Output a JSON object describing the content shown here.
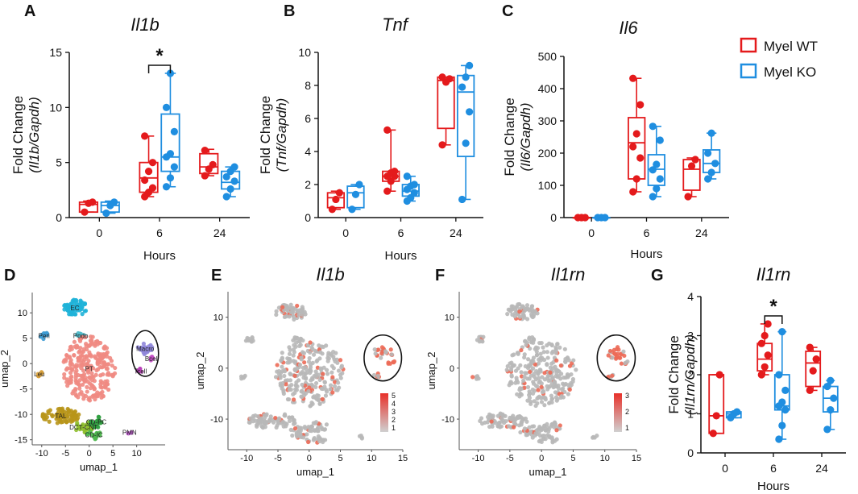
{
  "colors": {
    "wt": "#e41a1c",
    "ko": "#1f8ee0",
    "grey": "#b8b8b8"
  },
  "legend": {
    "wt": "Myel WT",
    "ko": "Myel KO"
  },
  "chart_data": [
    {
      "id": "A",
      "letter": "A",
      "type": "box",
      "title": "Il1b",
      "ylabel_top": "Fold Change",
      "ylabel_bottom": "(Il1b/Gapdh)",
      "xlabel": "Hours",
      "categories": [
        "0",
        "6",
        "24"
      ],
      "ylim": [
        0,
        15
      ],
      "yticks": [
        0,
        5,
        10,
        15
      ],
      "significance": {
        "group": 1,
        "label": "*"
      },
      "series": [
        {
          "name": "Myel WT",
          "groups": [
            {
              "min": 0.5,
              "q1": 0.5,
              "median": 1.2,
              "q3": 1.4,
              "max": 1.5,
              "points": [
                0.5,
                1.3,
                1.4
              ]
            },
            {
              "min": 1.9,
              "q1": 2.3,
              "median": 3.6,
              "q3": 5.0,
              "max": 7.4,
              "points": [
                1.9,
                2.3,
                2.7,
                3.4,
                4.2,
                5.0,
                7.4
              ]
            },
            {
              "min": 3.8,
              "q1": 4.0,
              "median": 4.6,
              "q3": 5.8,
              "max": 6.2,
              "points": [
                3.8,
                4.4,
                4.8,
                6.1
              ]
            }
          ]
        },
        {
          "name": "Myel KO",
          "groups": [
            {
              "min": 0.4,
              "q1": 0.5,
              "median": 1.1,
              "q3": 1.4,
              "max": 1.5,
              "points": [
                0.4,
                1.1,
                1.4
              ]
            },
            {
              "min": 2.8,
              "q1": 4.2,
              "median": 5.5,
              "q3": 9.4,
              "max": 13.1,
              "points": [
                2.8,
                3.6,
                4.6,
                5.5,
                5.8,
                7.8,
                10.0,
                13.1
              ]
            },
            {
              "min": 1.9,
              "q1": 2.6,
              "median": 3.2,
              "q3": 4.2,
              "max": 4.6,
              "points": [
                1.9,
                2.6,
                3.3,
                3.7,
                4.2,
                4.6
              ]
            }
          ]
        }
      ]
    },
    {
      "id": "B",
      "letter": "B",
      "type": "box",
      "title": "Tnf",
      "ylabel_top": "Fold Change",
      "ylabel_bottom": "(Tnf/Gapdh)",
      "xlabel": "Hours",
      "categories": [
        "0",
        "6",
        "24"
      ],
      "ylim": [
        0,
        10
      ],
      "yticks": [
        0,
        2,
        4,
        6,
        8,
        10
      ],
      "series": [
        {
          "name": "Myel WT",
          "groups": [
            {
              "min": 0.5,
              "q1": 0.6,
              "median": 1.2,
              "q3": 1.5,
              "max": 1.6,
              "points": [
                0.5,
                1.1,
                1.5
              ]
            },
            {
              "min": 1.6,
              "q1": 2.2,
              "median": 2.5,
              "q3": 2.8,
              "max": 5.3,
              "points": [
                1.6,
                2.2,
                2.5,
                2.5,
                2.7,
                2.8,
                5.3
              ]
            },
            {
              "min": 4.4,
              "q1": 5.4,
              "median": 8.3,
              "q3": 8.5,
              "max": 8.5,
              "points": [
                4.4,
                8.2,
                8.4,
                8.5
              ]
            }
          ]
        },
        {
          "name": "Myel KO",
          "groups": [
            {
              "min": 0.5,
              "q1": 0.6,
              "median": 1.5,
              "q3": 1.9,
              "max": 2.0,
              "points": [
                0.5,
                1.4,
                2.0
              ]
            },
            {
              "min": 1.0,
              "q1": 1.3,
              "median": 1.6,
              "q3": 2.0,
              "max": 2.5,
              "points": [
                1.0,
                1.2,
                1.5,
                1.7,
                1.9,
                2.0,
                2.5
              ]
            },
            {
              "min": 1.1,
              "q1": 3.7,
              "median": 7.6,
              "q3": 8.6,
              "max": 9.2,
              "points": [
                1.1,
                4.5,
                6.4,
                7.9,
                8.5,
                9.2
              ]
            }
          ]
        }
      ]
    },
    {
      "id": "C",
      "letter": "C",
      "type": "box",
      "title": "Il6",
      "ylabel_top": "Fold Change",
      "ylabel_bottom": "(Il6/Gapdh)",
      "xlabel": "Hours",
      "categories": [
        "0",
        "6",
        "24"
      ],
      "ylim": [
        0,
        500
      ],
      "yticks": [
        0,
        100,
        200,
        300,
        400,
        500
      ],
      "series": [
        {
          "name": "Myel WT",
          "groups": [
            {
              "min": 0,
              "q1": 0,
              "median": 0,
              "q3": 0,
              "max": 0,
              "points": [
                0,
                0,
                0
              ]
            },
            {
              "min": 80,
              "q1": 120,
              "median": 232,
              "q3": 310,
              "max": 432,
              "points": [
                80,
                120,
                185,
                220,
                260,
                350,
                432
              ]
            },
            {
              "min": 65,
              "q1": 85,
              "median": 150,
              "q3": 180,
              "max": 185,
              "points": [
                65,
                160,
                180
              ]
            }
          ]
        },
        {
          "name": "Myel KO",
          "groups": [
            {
              "min": 0,
              "q1": 0,
              "median": 0,
              "q3": 0,
              "max": 0,
              "points": [
                0,
                0,
                0
              ]
            },
            {
              "min": 65,
              "q1": 100,
              "median": 150,
              "q3": 195,
              "max": 283,
              "points": [
                65,
                90,
                120,
                148,
                165,
                240,
                283
              ]
            },
            {
              "min": 120,
              "q1": 140,
              "median": 168,
              "q3": 210,
              "max": 262,
              "points": [
                120,
                140,
                168,
                200,
                262
              ]
            }
          ]
        }
      ]
    },
    {
      "id": "G",
      "letter": "G",
      "type": "box",
      "title": "Il1rn",
      "ylabel_top": "Fold Change",
      "ylabel_bottom": "(Il1rn/Gapdh)",
      "xlabel": "Hours",
      "categories": [
        "0",
        "6",
        "24"
      ],
      "ylim": [
        0,
        4
      ],
      "yticks": [
        0,
        1,
        2,
        3,
        4
      ],
      "significance": {
        "group": 1,
        "label": "*"
      },
      "series": [
        {
          "name": "Myel WT",
          "groups": [
            {
              "min": 0.5,
              "q1": 0.5,
              "median": 0.95,
              "q3": 2.0,
              "max": 2.0,
              "points": [
                0.5,
                0.95,
                2.0
              ]
            },
            {
              "min": 2.0,
              "q1": 2.1,
              "median": 2.4,
              "q3": 2.8,
              "max": 3.3,
              "points": [
                2.0,
                2.2,
                2.5,
                2.8,
                3.0,
                3.3
              ]
            },
            {
              "min": 1.6,
              "q1": 1.7,
              "median": 2.3,
              "q3": 2.6,
              "max": 2.7,
              "points": [
                1.6,
                2.1,
                2.4,
                2.7
              ]
            }
          ]
        },
        {
          "name": "Myel KO",
          "groups": [
            {
              "min": 0.9,
              "q1": 0.9,
              "median": 1.0,
              "q3": 1.05,
              "max": 1.05,
              "points": [
                0.9,
                1.0,
                1.05
              ]
            },
            {
              "min": 0.35,
              "q1": 1.1,
              "median": 1.2,
              "q3": 2.0,
              "max": 3.1,
              "points": [
                0.35,
                0.7,
                1.1,
                1.2,
                1.3,
                1.6,
                2.0,
                3.1
              ]
            },
            {
              "min": 0.6,
              "q1": 1.05,
              "median": 1.4,
              "q3": 1.7,
              "max": 1.85,
              "points": [
                0.6,
                1.1,
                1.4,
                1.7,
                1.85
              ]
            }
          ]
        }
      ]
    },
    {
      "id": "D",
      "letter": "D",
      "type": "scatter",
      "xlabel": "umap_1",
      "ylabel": "umap_2",
      "xlim": [
        -12,
        16
      ],
      "ylim": [
        -16,
        14
      ],
      "xticks": [
        -10,
        -5,
        0,
        5,
        10
      ],
      "yticks": [
        -15,
        -10,
        -5,
        0,
        5,
        10
      ],
      "clusters": [
        {
          "name": "EC",
          "color": "#1fb3d8",
          "cx": -3,
          "cy": 11,
          "rx": 2.5,
          "ry": 1.6,
          "n": 60
        },
        {
          "name": "Podo",
          "color": "#4fb9c9",
          "cx": -1.8,
          "cy": 5.5,
          "rx": 1.0,
          "ry": 0.6,
          "n": 12
        },
        {
          "name": "Peri",
          "color": "#3d9bd3",
          "cx": -9.5,
          "cy": 5.5,
          "rx": 0.8,
          "ry": 0.8,
          "n": 10
        },
        {
          "name": "PT",
          "color": "#f08a82",
          "cx": 0,
          "cy": -1,
          "rx": 5.5,
          "ry": 6.5,
          "n": 260
        },
        {
          "name": "Macro",
          "color": "#8f86d9",
          "cx": 11.8,
          "cy": 3,
          "rx": 1.6,
          "ry": 1.2,
          "n": 22
        },
        {
          "name": "Bcell",
          "color": "#c34fc4",
          "cx": 13.2,
          "cy": 1,
          "rx": 0.6,
          "ry": 0.5,
          "n": 6
        },
        {
          "name": "Tcell",
          "color": "#b83fb8",
          "cx": 10.8,
          "cy": -1.5,
          "rx": 0.6,
          "ry": 0.5,
          "n": 6
        },
        {
          "name": "Leu",
          "color": "#d8a03a",
          "cx": -10.5,
          "cy": -2,
          "rx": 0.6,
          "ry": 0.6,
          "n": 6
        },
        {
          "name": "TAL",
          "color": "#b8951a",
          "cx": -6,
          "cy": -10.3,
          "rx": 4,
          "ry": 1.5,
          "n": 80
        },
        {
          "name": "DCT-CNT",
          "color": "#8fbf2f",
          "cx": -1.2,
          "cy": -12.5,
          "rx": 2.2,
          "ry": 1.2,
          "n": 30
        },
        {
          "name": "CD-PC",
          "color": "#2f9f3f",
          "cx": 1.5,
          "cy": -11.5,
          "rx": 1.6,
          "ry": 1.1,
          "n": 24
        },
        {
          "name": "CD-IC",
          "color": "#4fb84f",
          "cx": 1.0,
          "cy": -14.0,
          "rx": 1.6,
          "ry": 0.9,
          "n": 18
        },
        {
          "name": "PMN",
          "color": "#c05fd0",
          "cx": 8.5,
          "cy": -13.5,
          "rx": 0.5,
          "ry": 0.4,
          "n": 4
        }
      ],
      "highlight": {
        "cx": 11.8,
        "cy": 2,
        "rx": 2.8,
        "ry": 4.5
      }
    },
    {
      "id": "E",
      "letter": "E",
      "type": "scatter",
      "title": "Il1b",
      "xlabel": "umap_1",
      "ylabel": "umap_2",
      "xlim": [
        -13,
        15
      ],
      "ylim": [
        -16,
        15
      ],
      "xticks": [
        -10,
        -5,
        0,
        5,
        10,
        15
      ],
      "yticks": [
        -10,
        0,
        10
      ],
      "colorbar": {
        "ticks": [
          "5",
          "4",
          "3",
          "2",
          "1"
        ],
        "low": "#d0d0d0",
        "high": "#e8312a"
      },
      "highlight": {
        "cx": 11.8,
        "cy": 2,
        "rx": 3,
        "ry": 4.5
      },
      "expressing_fraction": 0.12
    },
    {
      "id": "F",
      "letter": "F",
      "type": "scatter",
      "title": "Il1rn",
      "xlabel": "umap_1",
      "ylabel": "umap_2",
      "xlim": [
        -13,
        15
      ],
      "ylim": [
        -16,
        15
      ],
      "xticks": [
        -10,
        -5,
        0,
        5,
        10,
        15
      ],
      "yticks": [
        -10,
        0,
        10
      ],
      "colorbar": {
        "ticks": [
          "3",
          "2",
          "1"
        ],
        "low": "#d0d0d0",
        "high": "#e8312a"
      },
      "highlight": {
        "cx": 11.8,
        "cy": 2,
        "rx": 3,
        "ry": 4.5
      },
      "expressing_fraction": 0.07
    }
  ]
}
